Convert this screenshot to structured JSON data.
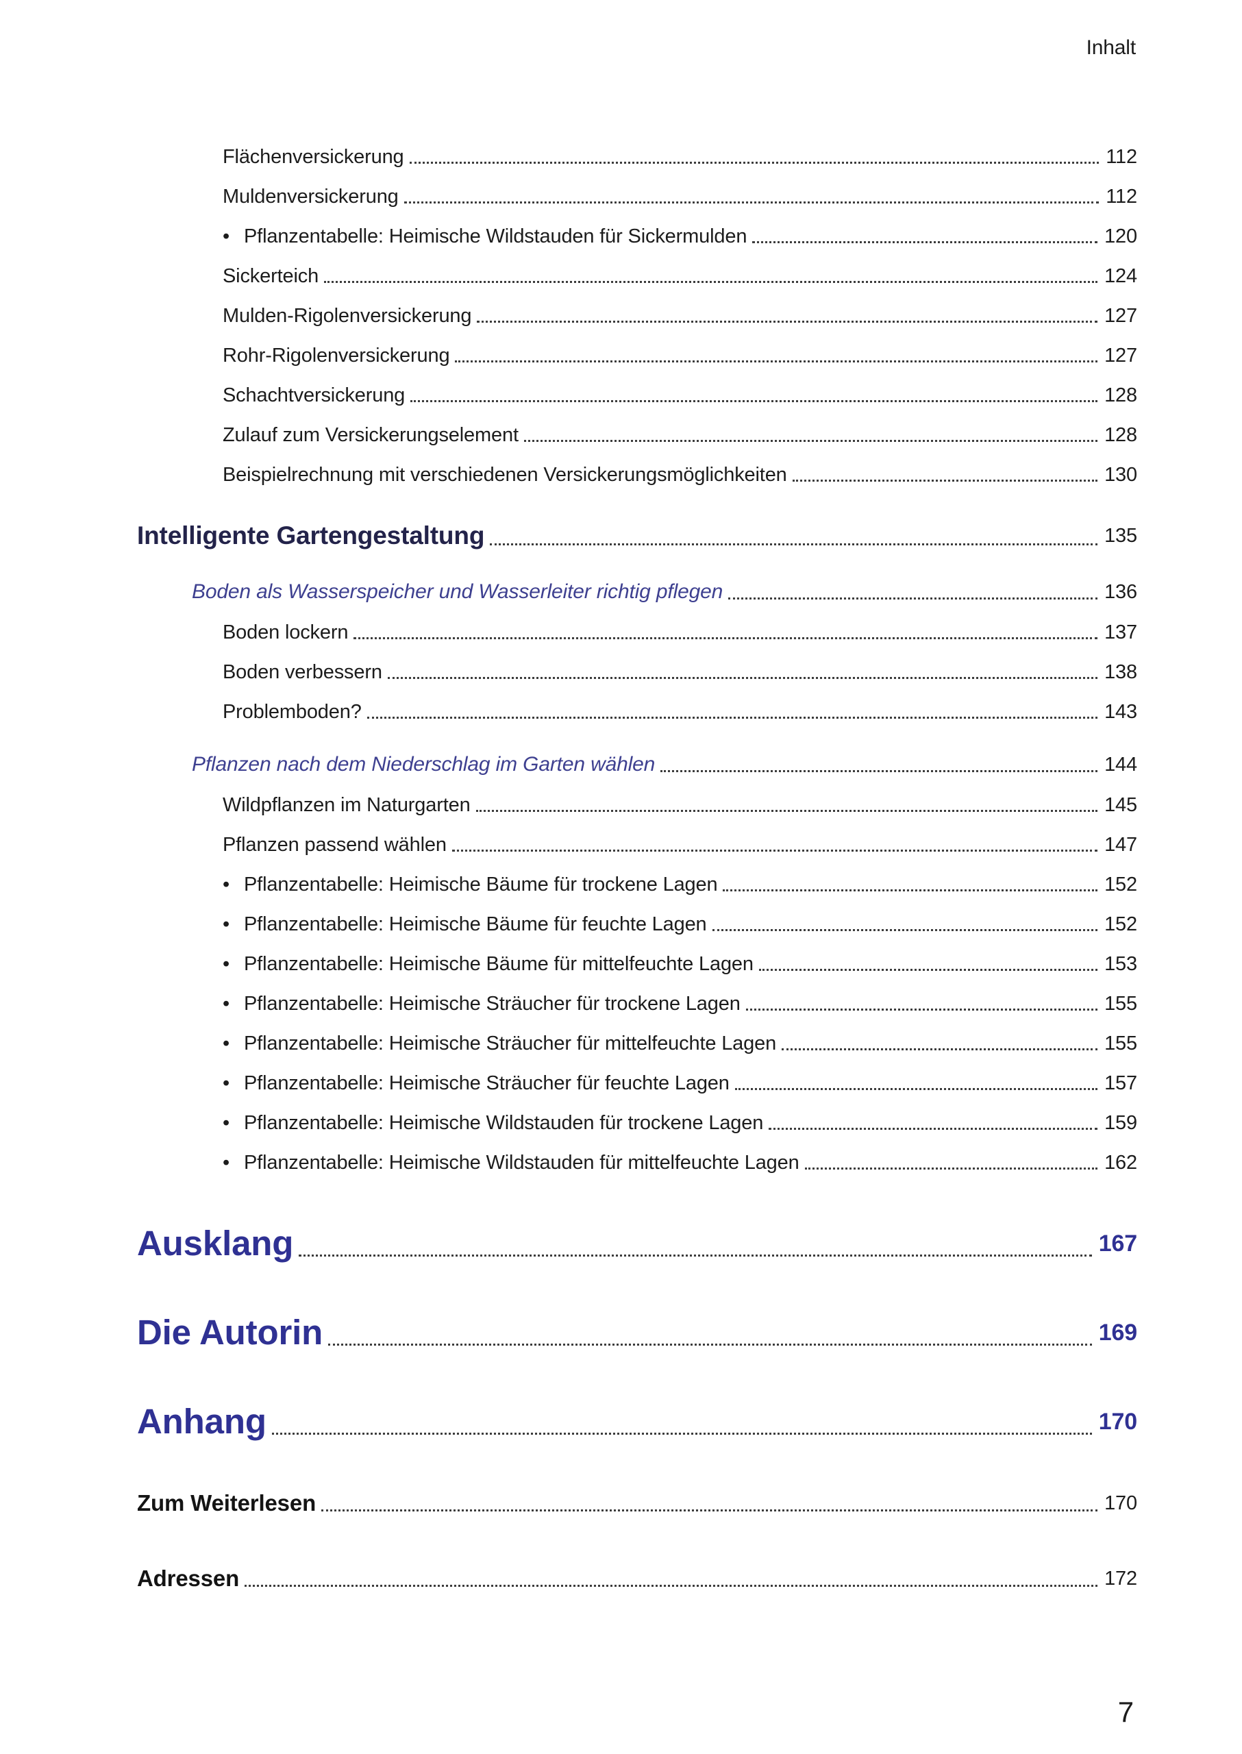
{
  "page": {
    "header_label": "Inhalt",
    "footer_page_number": "7",
    "bullet_char": "•"
  },
  "colors": {
    "body_text": "#1c1c1c",
    "section_heading": "#23234a",
    "chapter_blue": "#2f3193",
    "subsection_blue": "#3e4090",
    "leader_dots": "#3c3c3c"
  },
  "toc": {
    "entries": [
      {
        "type": "sub",
        "label": "Flächenversickerung",
        "page": "112"
      },
      {
        "type": "sub",
        "label": "Muldenversickerung",
        "page": "112"
      },
      {
        "type": "bullet",
        "label": "Pflanzentabelle: Heimische Wildstauden für Sickermulden",
        "page": "120"
      },
      {
        "type": "sub",
        "label": "Sickerteich",
        "page": "124"
      },
      {
        "type": "sub",
        "label": "Mulden-Rigolenversickerung",
        "page": "127"
      },
      {
        "type": "sub",
        "label": "Rohr-Rigolenversickerung",
        "page": "127"
      },
      {
        "type": "sub",
        "label": "Schachtversickerung",
        "page": "128"
      },
      {
        "type": "sub",
        "label": "Zulauf zum Versickerungselement",
        "page": "128"
      },
      {
        "type": "sub",
        "label": "Beispielrechnung mit verschiedenen Versickerungsmöglichkeiten",
        "page": "130"
      },
      {
        "type": "section",
        "label": "Intelligente Gartengestaltung",
        "page": "135"
      },
      {
        "type": "subsection",
        "label": "Boden als Wasserspeicher und Wasserleiter richtig pflegen",
        "page": "136"
      },
      {
        "type": "sub",
        "label": "Boden lockern",
        "page": "137"
      },
      {
        "type": "sub",
        "label": "Boden verbessern",
        "page": "138"
      },
      {
        "type": "sub",
        "label": "Problemboden?",
        "page": "143"
      },
      {
        "type": "subsection",
        "label": "Pflanzen nach dem Niederschlag im Garten wählen",
        "page": "144"
      },
      {
        "type": "sub",
        "label": "Wildpflanzen im Naturgarten",
        "page": "145"
      },
      {
        "type": "sub",
        "label": "Pflanzen passend wählen",
        "page": "147"
      },
      {
        "type": "bullet",
        "label": "Pflanzentabelle: Heimische Bäume für trockene Lagen",
        "page": "152"
      },
      {
        "type": "bullet",
        "label": "Pflanzentabelle: Heimische Bäume für feuchte Lagen",
        "page": "152"
      },
      {
        "type": "bullet",
        "label": "Pflanzentabelle: Heimische Bäume für mittelfeuchte Lagen",
        "page": "153"
      },
      {
        "type": "bullet",
        "label": "Pflanzentabelle: Heimische Sträucher für trockene Lagen",
        "page": "155"
      },
      {
        "type": "bullet",
        "label": "Pflanzentabelle: Heimische Sträucher für mittelfeuchte Lagen",
        "page": "155"
      },
      {
        "type": "bullet",
        "label": "Pflanzentabelle: Heimische Sträucher für feuchte Lagen",
        "page": "157"
      },
      {
        "type": "bullet",
        "label": "Pflanzentabelle: Heimische Wildstauden für trockene Lagen",
        "page": "159"
      },
      {
        "type": "bullet",
        "label": "Pflanzentabelle: Heimische Wildstauden für mittelfeuchte Lagen",
        "page": "162"
      },
      {
        "type": "chapter",
        "label": "Ausklang",
        "page": "167"
      },
      {
        "type": "chapter",
        "label": "Die Autorin",
        "page": "169"
      },
      {
        "type": "chapter",
        "label": "Anhang",
        "page": "170"
      },
      {
        "type": "appendix",
        "label": "Zum Weiterlesen",
        "page": "170"
      },
      {
        "type": "appendix",
        "label": "Adressen",
        "page": "172"
      }
    ]
  }
}
